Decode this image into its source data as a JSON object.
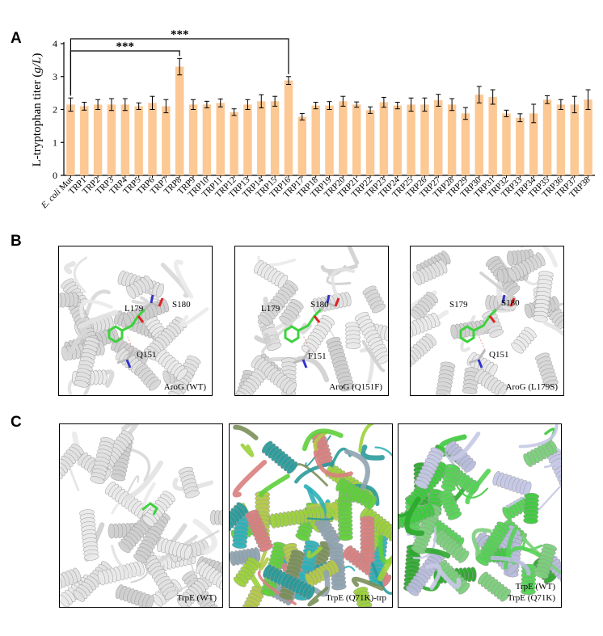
{
  "panel_labels": {
    "a": "A",
    "b": "B",
    "c": "C"
  },
  "chart_data": {
    "type": "bar",
    "ylabel_prefix": "L-tryptophan titer (",
    "ylabel_unit": "g/L",
    "ylabel_suffix": ")",
    "ylim": [
      0,
      4
    ],
    "yticks": [
      "0",
      "1",
      "2",
      "3",
      "4"
    ],
    "first_category_italic": "E. coli",
    "first_category_rest": " Mut",
    "categories": [
      "E. coli Mut",
      "TRP1",
      "TRP2",
      "TRP3",
      "TRP4",
      "TRP5",
      "TRP6",
      "TRP7",
      "TRP8",
      "TRP9",
      "TRP10",
      "TRP11",
      "TRP12",
      "TRP13",
      "TRP14",
      "TRP15",
      "TRP16",
      "TRP17",
      "TRP18",
      "TRP19",
      "TRP20",
      "TRP21",
      "TRP22",
      "TRP23",
      "TRP24",
      "TRP25",
      "TRP26",
      "TRP27",
      "TRP28",
      "TRP29",
      "TRP30",
      "TRP31",
      "TRP32",
      "TRP33",
      "TRP34",
      "TRP35",
      "TRP36",
      "TRP37",
      "TRP38"
    ],
    "values": [
      2.15,
      2.1,
      2.15,
      2.15,
      2.15,
      2.1,
      2.2,
      2.1,
      3.3,
      2.15,
      2.15,
      2.2,
      1.92,
      2.15,
      2.25,
      2.25,
      2.88,
      1.78,
      2.12,
      2.12,
      2.25,
      2.15,
      1.98,
      2.22,
      2.12,
      2.15,
      2.15,
      2.28,
      2.15,
      1.88,
      2.45,
      2.38,
      1.88,
      1.75,
      1.88,
      2.3,
      2.15,
      2.15,
      2.3
    ],
    "errors": [
      0.2,
      0.12,
      0.15,
      0.18,
      0.18,
      0.1,
      0.2,
      0.2,
      0.25,
      0.15,
      0.1,
      0.12,
      0.1,
      0.15,
      0.2,
      0.15,
      0.12,
      0.1,
      0.1,
      0.12,
      0.15,
      0.08,
      0.1,
      0.15,
      0.1,
      0.2,
      0.2,
      0.18,
      0.18,
      0.18,
      0.25,
      0.22,
      0.1,
      0.12,
      0.28,
      0.12,
      0.15,
      0.25,
      0.3
    ],
    "bar_color": "#fcc894",
    "significance": [
      {
        "from": 0,
        "to": 8,
        "label": "***"
      },
      {
        "from": 0,
        "to": 16,
        "label": "***"
      }
    ]
  },
  "panel_b": [
    {
      "caption": "AroG (WT)",
      "residues": [
        "L179",
        "S180",
        "Q151"
      ]
    },
    {
      "caption": "AroG (Q151F)",
      "residues": [
        "L179",
        "S180",
        "F151"
      ]
    },
    {
      "caption": "AroG (L179S)",
      "residues": [
        "S179",
        "S180",
        "Q151"
      ]
    }
  ],
  "panel_c": [
    {
      "caption_lines": [
        "TrpE (WT)"
      ]
    },
    {
      "caption_lines": [
        "TrpE (Q71K)-trp"
      ]
    },
    {
      "caption_lines": [
        "TrpE (WT)",
        "TrpE (Q71K)"
      ]
    }
  ],
  "colors": {
    "ligand": "#3ed23e",
    "nitrogen": "#3333cc",
    "oxygen": "#dd2222",
    "cartoon": "#d7d7d7"
  }
}
